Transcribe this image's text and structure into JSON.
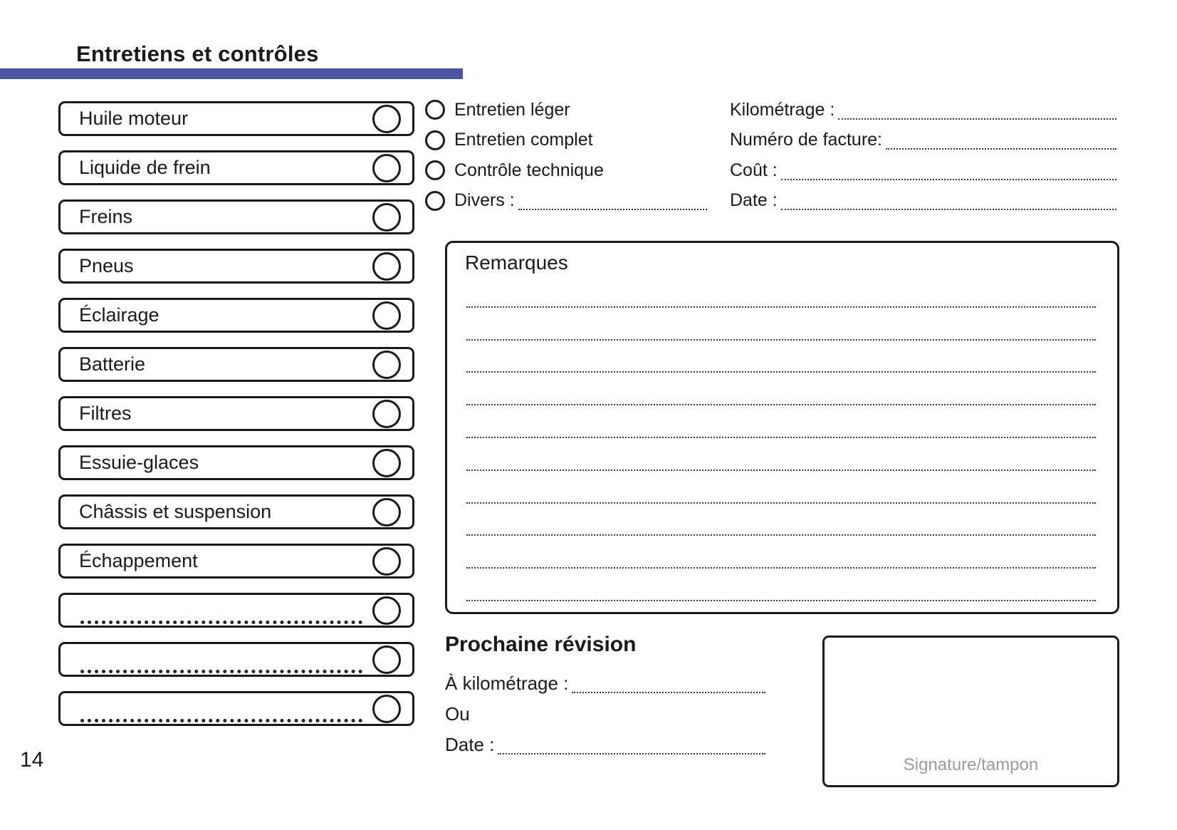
{
  "page": {
    "title": "Entretiens et contrôles",
    "page_number": "14"
  },
  "colors": {
    "accent_bar": "#4b55a0",
    "ink": "#1a1a1a",
    "signature_label": "#9a9a9a"
  },
  "checklist": {
    "items": [
      {
        "label": "Huile moteur",
        "blank": false
      },
      {
        "label": "Liquide de frein",
        "blank": false
      },
      {
        "label": "Freins",
        "blank": false
      },
      {
        "label": "Pneus",
        "blank": false
      },
      {
        "label": "Éclairage",
        "blank": false
      },
      {
        "label": "Batterie",
        "blank": false
      },
      {
        "label": "Filtres",
        "blank": false
      },
      {
        "label": "Essuie-glaces",
        "blank": false
      },
      {
        "label": "Châssis et suspension",
        "blank": false
      },
      {
        "label": "Échappement",
        "blank": false
      },
      {
        "label": "",
        "blank": true
      },
      {
        "label": "",
        "blank": true
      },
      {
        "label": "",
        "blank": true
      }
    ]
  },
  "service_types": {
    "options": [
      {
        "label": "Entretien léger",
        "dotted_line": false
      },
      {
        "label": "Entretien complet",
        "dotted_line": false
      },
      {
        "label": "Contrôle technique",
        "dotted_line": false
      },
      {
        "label": "Divers :",
        "dotted_line": true
      }
    ]
  },
  "record_fields": {
    "items": [
      {
        "label": "Kilométrage :"
      },
      {
        "label": "Numéro de facture:"
      },
      {
        "label": "Coût :"
      },
      {
        "label": "Date :"
      }
    ]
  },
  "remarks": {
    "title": "Remarques",
    "line_count": 10
  },
  "next_service": {
    "title": "Prochaine révision",
    "fields": [
      {
        "label": "À kilométrage :",
        "dotted_line": true
      },
      {
        "label": "Ou",
        "dotted_line": false
      },
      {
        "label": "Date :",
        "dotted_line": true
      }
    ]
  },
  "signature_box": {
    "label": "Signature/tampon"
  }
}
